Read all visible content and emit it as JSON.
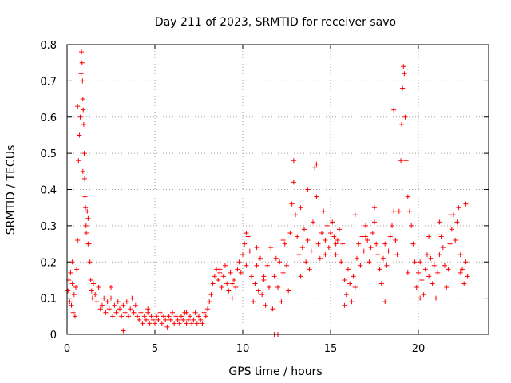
{
  "chart_data": {
    "type": "scatter",
    "title": "Day 211 of 2023, SRMTID for receiver savo",
    "xlabel": "GPS time / hours",
    "ylabel": "SRMTID / TECUs",
    "xlim": [
      0,
      24
    ],
    "ylim": [
      0,
      0.8
    ],
    "xticks": [
      0,
      5,
      10,
      15,
      20
    ],
    "xtick_labels": [
      "0",
      "5",
      "10",
      "15",
      "20"
    ],
    "yticks": [
      0,
      0.1,
      0.2,
      0.3,
      0.4,
      0.5,
      0.6,
      0.7,
      0.8
    ],
    "ytick_labels": [
      "0",
      "0.1",
      "0.2",
      "0.3",
      "0.4",
      "0.5",
      "0.6",
      "0.7",
      "0.8"
    ],
    "grid": true,
    "marker": "+",
    "color": "#ff0000",
    "series": [
      {
        "name": "SRMTID",
        "x": [
          0.05,
          0.1,
          0.15,
          0.2,
          0.25,
          0.3,
          0.35,
          0.4,
          0.45,
          0.5,
          0.55,
          0.6,
          0.65,
          0.7,
          0.75,
          0.8,
          0.82,
          0.85,
          0.88,
          0.9,
          0.92,
          0.95,
          0.98,
          1.0,
          1.02,
          1.05,
          1.08,
          1.1,
          1.15,
          1.2,
          1.25,
          1.3,
          1.35,
          1.4,
          1.45,
          1.5,
          1.6,
          1.7,
          1.8,
          1.9,
          2.0,
          2.1,
          2.2,
          2.3,
          2.4,
          2.5,
          2.6,
          2.7,
          2.8,
          2.9,
          3.0,
          3.1,
          3.2,
          3.3,
          3.4,
          3.5,
          3.6,
          3.7,
          3.8,
          3.9,
          4.0,
          4.1,
          4.2,
          4.3,
          4.4,
          4.5,
          4.6,
          4.7,
          4.8,
          4.9,
          5.0,
          5.1,
          5.2,
          5.3,
          5.4,
          5.5,
          5.6,
          5.7,
          5.8,
          5.9,
          6.0,
          6.1,
          6.2,
          6.3,
          6.4,
          6.5,
          6.6,
          6.7,
          6.8,
          6.9,
          7.0,
          7.1,
          7.2,
          7.3,
          7.4,
          7.5,
          7.6,
          7.7,
          7.8,
          7.9,
          8.0,
          8.1,
          8.2,
          8.3,
          8.4,
          8.5,
          8.6,
          8.7,
          8.8,
          8.9,
          9.0,
          9.1,
          9.2,
          9.3,
          9.4,
          9.5,
          9.6,
          9.7,
          9.8,
          9.9,
          10.0,
          10.1,
          10.2,
          10.3,
          10.4,
          10.5,
          10.6,
          10.7,
          10.8,
          10.9,
          11.0,
          11.1,
          11.2,
          11.3,
          11.4,
          11.5,
          11.6,
          11.7,
          11.8,
          11.9,
          12.0,
          12.1,
          12.2,
          12.3,
          12.4,
          12.5,
          12.6,
          12.7,
          12.8,
          12.9,
          13.0,
          13.1,
          13.2,
          13.3,
          13.4,
          13.5,
          13.6,
          13.7,
          13.8,
          13.9,
          14.0,
          14.1,
          14.2,
          14.3,
          14.4,
          14.5,
          14.6,
          14.7,
          14.8,
          14.9,
          15.0,
          15.1,
          15.2,
          15.3,
          15.4,
          15.5,
          15.6,
          15.7,
          15.8,
          15.9,
          16.0,
          16.1,
          16.2,
          16.3,
          16.4,
          16.5,
          16.6,
          16.7,
          16.8,
          16.9,
          17.0,
          17.1,
          17.2,
          17.3,
          17.4,
          17.5,
          17.6,
          17.7,
          17.8,
          17.9,
          18.0,
          18.1,
          18.2,
          18.3,
          18.4,
          18.5,
          18.6,
          18.7,
          18.8,
          18.9,
          19.0,
          19.05,
          19.1,
          19.15,
          19.2,
          19.25,
          19.3,
          19.4,
          19.5,
          19.6,
          19.7,
          19.8,
          19.9,
          20.0,
          20.1,
          20.2,
          20.3,
          20.4,
          20.5,
          20.6,
          20.7,
          20.8,
          20.9,
          21.0,
          21.1,
          21.2,
          21.3,
          21.4,
          21.5,
          21.6,
          21.7,
          21.8,
          21.9,
          22.0,
          22.1,
          22.2,
          22.3,
          22.4,
          22.5,
          22.6,
          22.7,
          22.8,
          0.3,
          0.6,
          0.9,
          1.2,
          2.5,
          3.2,
          4.6,
          5.5,
          6.8,
          8.7,
          9.4,
          10.2,
          10.8,
          11.2,
          11.8,
          12.0,
          12.3,
          12.9,
          13.3,
          13.7,
          14.2,
          14.7,
          15.3,
          15.8,
          16.4,
          17.0,
          17.5,
          18.1,
          18.6,
          19.4,
          20.1,
          20.6,
          21.2,
          21.8,
          22.4,
          22.7
        ],
        "y": [
          0.12,
          0.15,
          0.09,
          0.17,
          0.08,
          0.14,
          0.06,
          0.11,
          0.05,
          0.13,
          0.18,
          0.26,
          0.48,
          0.55,
          0.6,
          0.72,
          0.78,
          0.75,
          0.7,
          0.65,
          0.62,
          0.58,
          0.5,
          0.43,
          0.38,
          0.35,
          0.3,
          0.28,
          0.34,
          0.32,
          0.25,
          0.2,
          0.15,
          0.12,
          0.1,
          0.14,
          0.11,
          0.09,
          0.13,
          0.07,
          0.08,
          0.1,
          0.06,
          0.09,
          0.07,
          0.1,
          0.05,
          0.08,
          0.06,
          0.09,
          0.07,
          0.05,
          0.08,
          0.06,
          0.09,
          0.05,
          0.07,
          0.1,
          0.06,
          0.08,
          0.05,
          0.04,
          0.06,
          0.03,
          0.05,
          0.04,
          0.06,
          0.03,
          0.05,
          0.04,
          0.03,
          0.05,
          0.04,
          0.06,
          0.03,
          0.05,
          0.04,
          0.02,
          0.05,
          0.04,
          0.06,
          0.03,
          0.05,
          0.04,
          0.03,
          0.05,
          0.04,
          0.06,
          0.03,
          0.04,
          0.05,
          0.03,
          0.04,
          0.06,
          0.03,
          0.05,
          0.04,
          0.03,
          0.06,
          0.05,
          0.07,
          0.09,
          0.11,
          0.14,
          0.16,
          0.18,
          0.15,
          0.17,
          0.13,
          0.16,
          0.19,
          0.14,
          0.12,
          0.17,
          0.1,
          0.15,
          0.13,
          0.18,
          0.2,
          0.17,
          0.22,
          0.25,
          0.19,
          0.27,
          0.23,
          0.16,
          0.09,
          0.14,
          0.19,
          0.12,
          0.21,
          0.11,
          0.16,
          0.08,
          0.19,
          0.13,
          0.24,
          0.07,
          0.16,
          0.21,
          0.13,
          0.2,
          0.09,
          0.17,
          0.25,
          0.19,
          0.12,
          0.28,
          0.36,
          0.42,
          0.33,
          0.27,
          0.22,
          0.16,
          0.24,
          0.29,
          0.2,
          0.26,
          0.18,
          0.23,
          0.31,
          0.46,
          0.38,
          0.25,
          0.21,
          0.28,
          0.34,
          0.26,
          0.3,
          0.24,
          0.28,
          0.31,
          0.27,
          0.22,
          0.26,
          0.29,
          0.2,
          0.25,
          0.15,
          0.11,
          0.18,
          0.14,
          0.09,
          0.16,
          0.13,
          0.21,
          0.25,
          0.19,
          0.27,
          0.23,
          0.3,
          0.26,
          0.2,
          0.24,
          0.28,
          0.31,
          0.25,
          0.22,
          0.18,
          0.14,
          0.21,
          0.25,
          0.19,
          0.23,
          0.27,
          0.3,
          0.34,
          0.26,
          0.22,
          0.34,
          0.48,
          0.58,
          0.68,
          0.74,
          0.72,
          0.6,
          0.48,
          0.38,
          0.34,
          0.3,
          0.25,
          0.2,
          0.13,
          0.17,
          0.2,
          0.15,
          0.11,
          0.18,
          0.22,
          0.16,
          0.21,
          0.14,
          0.19,
          0.1,
          0.17,
          0.22,
          0.27,
          0.24,
          0.19,
          0.13,
          0.18,
          0.25,
          0.29,
          0.33,
          0.26,
          0.31,
          0.35,
          0.22,
          0.18,
          0.14,
          0.2,
          0.16,
          0.2,
          0.63,
          0.45,
          0.25,
          0.13,
          0.01,
          0.07,
          0.05,
          0.06,
          0.18,
          0.14,
          0.28,
          0.24,
          0.15,
          0.0,
          0.0,
          0.26,
          0.48,
          0.35,
          0.4,
          0.47,
          0.22,
          0.25,
          0.08,
          0.33,
          0.27,
          0.35,
          0.09,
          0.62,
          0.17,
          0.1,
          0.27,
          0.31,
          0.33,
          0.17,
          0.36
        ]
      }
    ]
  }
}
